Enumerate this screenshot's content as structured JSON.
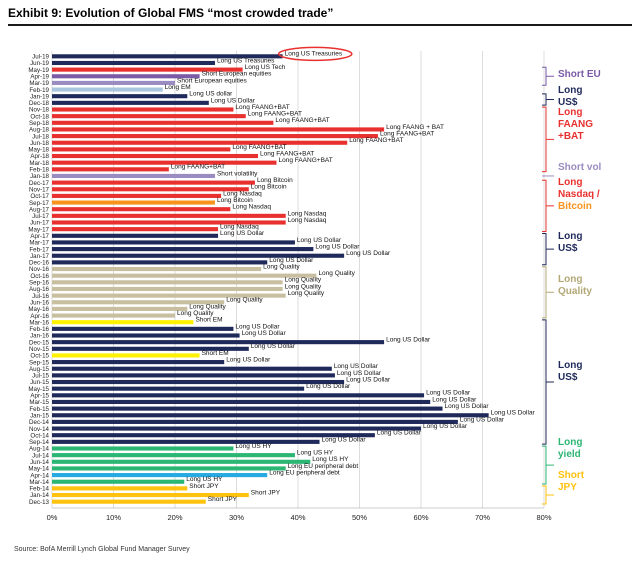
{
  "title": "Exhibit 9: Evolution of Global FMS “most crowded trade”",
  "source": "Source:  BofA Merrill Lynch Global Fund Manager Survey",
  "chart_data": {
    "type": "bar",
    "orientation": "horizontal",
    "xlim": [
      0,
      80
    ],
    "x_ticks": [
      "0%",
      "10%",
      "20%",
      "30%",
      "40%",
      "50%",
      "60%",
      "70%",
      "80%"
    ],
    "grid": true,
    "legend": "none",
    "highlight_label": "Long US Treasuries",
    "bars": [
      {
        "cat": "Jul-19",
        "value": 37.5,
        "label": "Long US Treasuries",
        "color": "#1f2a5a"
      },
      {
        "cat": "Jun-19",
        "value": 26.5,
        "label": "Long US Treasuries",
        "color": "#1f2a5a"
      },
      {
        "cat": "May-19",
        "value": 31,
        "label": "Long US Tech",
        "color": "#e8312f"
      },
      {
        "cat": "Apr-19",
        "value": 24,
        "label": "Short European equities",
        "color": "#7b5aa6"
      },
      {
        "cat": "Mar-19",
        "value": 20,
        "label": "Short European equities",
        "color": "#9a8cc0"
      },
      {
        "cat": "Feb-19",
        "value": 18,
        "label": "Long EM",
        "color": "#a9c6de"
      },
      {
        "cat": "Jan-19",
        "value": 22,
        "label": "Long US dollar",
        "color": "#1f2a5a"
      },
      {
        "cat": "Dec-18",
        "value": 25.5,
        "label": "Long US Dollar",
        "color": "#1f2a5a"
      },
      {
        "cat": "Nov-18",
        "value": 29.5,
        "label": "Long FAANG+BAT",
        "color": "#e8312f"
      },
      {
        "cat": "Oct-18",
        "value": 31.5,
        "label": "Long FAANG+BAT",
        "color": "#e8312f"
      },
      {
        "cat": "Sep-18",
        "value": 36,
        "label": "Long FAANG+BAT",
        "color": "#e8312f"
      },
      {
        "cat": "Aug-18",
        "value": 54,
        "label": "Long FAANG + BAT",
        "color": "#e8312f"
      },
      {
        "cat": "Jul-18",
        "value": 53,
        "label": "Long FAANG+BAT",
        "color": "#e8312f"
      },
      {
        "cat": "Jun-18",
        "value": 48,
        "label": "Long FAANG+BAT",
        "color": "#e8312f"
      },
      {
        "cat": "May-18",
        "value": 29,
        "label": "Long FAANG+BAT",
        "color": "#e8312f"
      },
      {
        "cat": "Apr-18",
        "value": 33.5,
        "label": "Long FAANG+BAT",
        "color": "#e8312f"
      },
      {
        "cat": "Mar-18",
        "value": 36.5,
        "label": "Long FAANG+BAT",
        "color": "#e8312f"
      },
      {
        "cat": "Feb-18",
        "value": 19,
        "label": "Long FAANG+BAT",
        "color": "#e8312f"
      },
      {
        "cat": "Jan-18",
        "value": 26.5,
        "label": "Short volatility",
        "color": "#9a8cc0"
      },
      {
        "cat": "Dec-17",
        "value": 33,
        "label": "Long Bitcoin",
        "color": "#e8312f"
      },
      {
        "cat": "Nov-17",
        "value": 32,
        "label": "Long Bitcoin",
        "color": "#e8312f"
      },
      {
        "cat": "Oct-17",
        "value": 27.5,
        "label": "Long Nasdaq",
        "color": "#e8312f"
      },
      {
        "cat": "Sep-17",
        "value": 26.5,
        "label": "Long Bitcoin",
        "color": "#f7941d"
      },
      {
        "cat": "Aug-17",
        "value": 29,
        "label": "Long Nasdaq",
        "color": "#e8312f"
      },
      {
        "cat": "Jul-17",
        "value": 38,
        "label": "Long Nasdaq",
        "color": "#e8312f"
      },
      {
        "cat": "Jun-17",
        "value": 38,
        "label": "Long Nasdaq",
        "color": "#e8312f"
      },
      {
        "cat": "May-17",
        "value": 27,
        "label": "Long Nasdaq",
        "color": "#e8312f"
      },
      {
        "cat": "Apr-17",
        "value": 27,
        "label": "Long US Dollar",
        "color": "#1f2a5a"
      },
      {
        "cat": "Mar-17",
        "value": 39.5,
        "label": "Long US Dollar",
        "color": "#1f2a5a"
      },
      {
        "cat": "Feb-17",
        "value": 42.5,
        "label": "Long US Dollar",
        "color": "#1f2a5a"
      },
      {
        "cat": "Jan-17",
        "value": 47.5,
        "label": "Long US Dollar",
        "color": "#1f2a5a"
      },
      {
        "cat": "Dec-16",
        "value": 35,
        "label": "Long US Dollar",
        "color": "#1f2a5a"
      },
      {
        "cat": "Nov-16",
        "value": 34,
        "label": "Long Quality",
        "color": "#c8bfa0"
      },
      {
        "cat": "Oct-16",
        "value": 43,
        "label": "Long Quality",
        "color": "#c8bfa0"
      },
      {
        "cat": "Sep-16",
        "value": 37.5,
        "label": "Long Quality",
        "color": "#c8bfa0"
      },
      {
        "cat": "Aug-16",
        "value": 37.5,
        "label": "Long Quality",
        "color": "#c8bfa0"
      },
      {
        "cat": "Jul-16",
        "value": 38,
        "label": "Long Quality",
        "color": "#c8bfa0"
      },
      {
        "cat": "Jun-16",
        "value": 28,
        "label": "Long Quality",
        "color": "#c8bfa0"
      },
      {
        "cat": "May-16",
        "value": 22,
        "label": "Long Quality",
        "color": "#c8bfa0"
      },
      {
        "cat": "Apr-16",
        "value": 20,
        "label": "Long Quality",
        "color": "#c8bfa0"
      },
      {
        "cat": "Mar-16",
        "value": 23,
        "label": "Short EM",
        "color": "#fff200"
      },
      {
        "cat": "Feb-16",
        "value": 29.5,
        "label": "Long US Dollar",
        "color": "#1f2a5a"
      },
      {
        "cat": "Jan-16",
        "value": 30.5,
        "label": "Long US Dollar",
        "color": "#1f2a5a"
      },
      {
        "cat": "Dec-15",
        "value": 54,
        "label": "Long US Dollar",
        "color": "#1f2a5a"
      },
      {
        "cat": "Nov-15",
        "value": 32,
        "label": "Long US Dollar",
        "color": "#1f2a5a"
      },
      {
        "cat": "Oct-15",
        "value": 24,
        "label": "Short EM",
        "color": "#fff200"
      },
      {
        "cat": "Sep-15",
        "value": 28,
        "label": "Long US Dollar",
        "color": "#1f2a5a"
      },
      {
        "cat": "Aug-15",
        "value": 45.5,
        "label": "Long US Dollar",
        "color": "#1f2a5a"
      },
      {
        "cat": "Jul-15",
        "value": 46,
        "label": "Long US Dollar",
        "color": "#1f2a5a"
      },
      {
        "cat": "Jun-15",
        "value": 47.5,
        "label": "Long US Dollar",
        "color": "#1f2a5a"
      },
      {
        "cat": "May-15",
        "value": 41,
        "label": "Long US Dollar",
        "color": "#1f2a5a"
      },
      {
        "cat": "Apr-15",
        "value": 60.5,
        "label": "Long US Dollar",
        "color": "#1f2a5a"
      },
      {
        "cat": "Mar-15",
        "value": 61.5,
        "label": "Long US Dollar",
        "color": "#1f2a5a"
      },
      {
        "cat": "Feb-15",
        "value": 63.5,
        "label": "Long US Dollar",
        "color": "#1f2a5a"
      },
      {
        "cat": "Jan-15",
        "value": 71,
        "label": "Long US Dollar",
        "color": "#1f2a5a"
      },
      {
        "cat": "Dec-14",
        "value": 66,
        "label": "Long US Dollar",
        "color": "#1f2a5a"
      },
      {
        "cat": "Nov-14",
        "value": 60,
        "label": "Long US Dollar",
        "color": "#1f2a5a"
      },
      {
        "cat": "Oct-14",
        "value": 52.5,
        "label": "Long US Dollar",
        "color": "#1f2a5a"
      },
      {
        "cat": "Sep-14",
        "value": 43.5,
        "label": "Long US Dollar",
        "color": "#1f2a5a"
      },
      {
        "cat": "Aug-14",
        "value": 29.5,
        "label": "Long US HY",
        "color": "#2bb673"
      },
      {
        "cat": "Jul-14",
        "value": 39.5,
        "label": "Long US HY",
        "color": "#2bb673"
      },
      {
        "cat": "Jun-14",
        "value": 42,
        "label": "Long US HY",
        "color": "#2bb673"
      },
      {
        "cat": "May-14",
        "value": 38,
        "label": "Long EU peripheral debt",
        "color": "#2bb673"
      },
      {
        "cat": "Apr-14",
        "value": 35,
        "label": "Long EU peripheral debt",
        "color": "#27aae1"
      },
      {
        "cat": "Mar-14",
        "value": 21.5,
        "label": "Long US HY",
        "color": "#2bb673"
      },
      {
        "cat": "Feb-14",
        "value": 22,
        "label": "Short JPY",
        "color": "#ffc20e"
      },
      {
        "cat": "Jan-14",
        "value": 32,
        "label": "Short JPY",
        "color": "#ffc20e"
      },
      {
        "cat": "Dec-13",
        "value": 25,
        "label": "Short JPY",
        "color": "#ffc20e"
      }
    ]
  },
  "groups": [
    {
      "lines": [
        "Short EU"
      ],
      "color": "#7b5aa6"
    },
    {
      "lines": [
        "Long",
        "US$"
      ],
      "color": "#1f2a5a"
    },
    {
      "lines": [
        "Long",
        "FAANG",
        "+BAT"
      ],
      "color": "#e8312f"
    },
    {
      "lines": [
        "Short vol"
      ],
      "color": "#9a8cc0"
    },
    {
      "lines": [
        "Long",
        "Nasdaq /",
        "Bitcoin"
      ],
      "color": "#e8312f",
      "last_color": "#f7941d"
    },
    {
      "lines": [
        "Long",
        "US$"
      ],
      "color": "#1f2a5a"
    },
    {
      "lines": [
        "Long",
        "Quality"
      ],
      "color": "#b3a876"
    },
    {
      "lines": [
        "Long",
        "US$"
      ],
      "color": "#1f2a5a"
    },
    {
      "lines": [
        "Long",
        "yield"
      ],
      "color": "#2bb673"
    },
    {
      "lines": [
        "Short",
        "JPY"
      ],
      "color": "#ffc20e"
    }
  ]
}
